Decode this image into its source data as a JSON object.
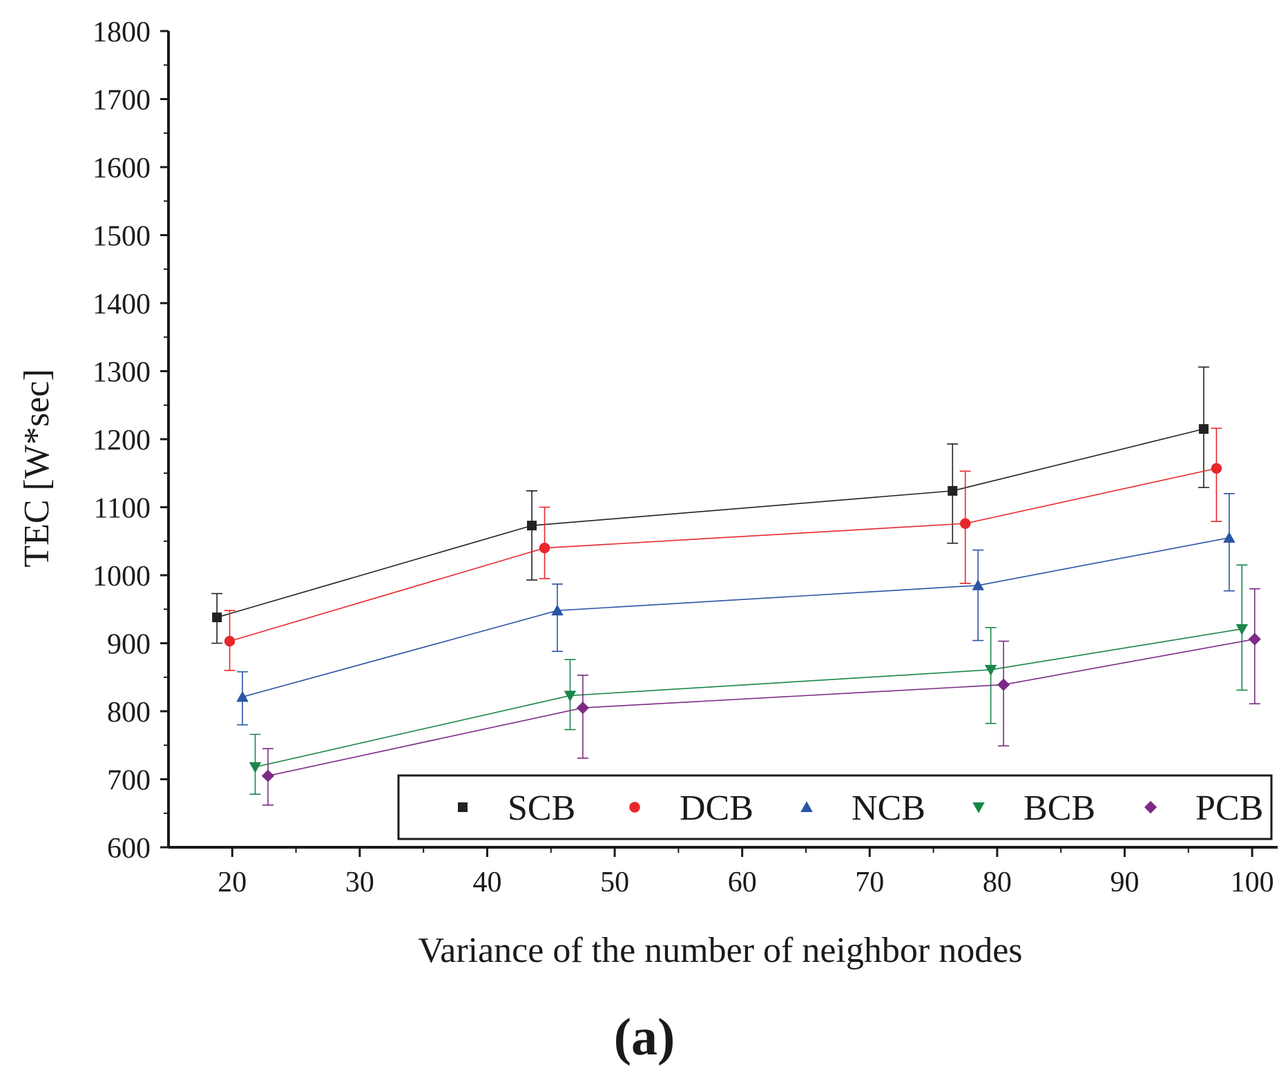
{
  "chart_data": {
    "type": "line",
    "title": "",
    "xlabel": "Variance of the number of neighbor nodes",
    "ylabel": "TEC [W*sec]",
    "xlim": [
      15,
      102
    ],
    "ylim": [
      600,
      1800
    ],
    "xticks": [
      20,
      30,
      40,
      50,
      60,
      70,
      80,
      90,
      100
    ],
    "yticks": [
      600,
      700,
      800,
      900,
      1000,
      1100,
      1200,
      1300,
      1400,
      1500,
      1600,
      1700,
      1800
    ],
    "panel_label": "(a)",
    "legend_position": "bottom-right",
    "series": [
      {
        "name": "SCB",
        "color": "#222222",
        "marker": "square",
        "x": [
          18.8,
          43.5,
          76.5,
          96.2
        ],
        "y": [
          938,
          1073,
          1124,
          1215
        ],
        "err_low": [
          900,
          993,
          1047,
          1129
        ],
        "err_high": [
          973,
          1124,
          1193,
          1306
        ]
      },
      {
        "name": "DCB",
        "color": "#e8262b",
        "marker": "circle",
        "x": [
          19.8,
          44.5,
          77.5,
          97.2
        ],
        "y": [
          903,
          1040,
          1076,
          1157
        ],
        "err_low": [
          860,
          995,
          988,
          1079
        ],
        "err_high": [
          948,
          1100,
          1153,
          1216
        ]
      },
      {
        "name": "NCB",
        "color": "#2a54a4",
        "marker": "triangle-up",
        "x": [
          20.8,
          45.5,
          78.5,
          98.2
        ],
        "y": [
          821,
          948,
          985,
          1055
        ],
        "err_low": [
          780,
          888,
          904,
          977
        ],
        "err_high": [
          858,
          987,
          1037,
          1120
        ]
      },
      {
        "name": "BCB",
        "color": "#19864a",
        "marker": "triangle-down",
        "x": [
          21.8,
          46.5,
          79.5,
          99.2
        ],
        "y": [
          718,
          823,
          861,
          921
        ],
        "err_low": [
          678,
          773,
          782,
          831
        ],
        "err_high": [
          766,
          876,
          923,
          1015
        ]
      },
      {
        "name": "PCB",
        "color": "#7d2a87",
        "marker": "diamond",
        "x": [
          22.8,
          47.5,
          80.5,
          100.2
        ],
        "y": [
          705,
          805,
          839,
          906
        ],
        "err_low": [
          662,
          731,
          749,
          811
        ],
        "err_high": [
          745,
          853,
          903,
          980
        ]
      }
    ]
  }
}
